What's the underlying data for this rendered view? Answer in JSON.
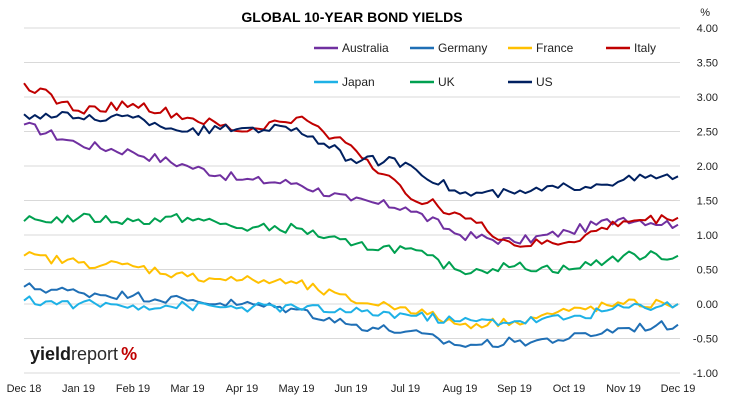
{
  "chart_data": {
    "type": "line",
    "title": "GLOBAL 10-YEAR BOND YIELDS",
    "ylabel": "%",
    "ylim": [
      -1.0,
      4.0
    ],
    "yticks": [
      "4.00",
      "3.50",
      "3.00",
      "2.50",
      "2.00",
      "1.50",
      "1.00",
      "0.50",
      "0.00",
      "-0.50",
      "-1.00"
    ],
    "yticks_values": [
      4.0,
      3.5,
      3.0,
      2.5,
      2.0,
      1.5,
      1.0,
      0.5,
      0.0,
      -0.5,
      -1.0
    ],
    "xticks": [
      "Dec 18",
      "Jan 19",
      "Feb 19",
      "Mar 19",
      "Apr 19",
      "May 19",
      "Jun 19",
      "Jul 19",
      "Aug 19",
      "Sep 19",
      "Oct 19",
      "Nov 19",
      "Dec 19"
    ],
    "grid": true,
    "legend_position": "top-right",
    "series": [
      {
        "name": "Australia",
        "color": "#7030A0",
        "values": [
          2.6,
          2.32,
          2.2,
          2.0,
          1.8,
          1.75,
          1.5,
          1.4,
          1.0,
          0.9,
          1.05,
          1.25,
          1.15
        ]
      },
      {
        "name": "Germany",
        "color": "#1F6FB5",
        "values": [
          0.25,
          0.17,
          0.12,
          0.05,
          0.0,
          -0.08,
          -0.3,
          -0.4,
          -0.6,
          -0.55,
          -0.5,
          -0.35,
          -0.3
        ]
      },
      {
        "name": "France",
        "color": "#FFC000",
        "values": [
          0.7,
          0.6,
          0.55,
          0.4,
          0.35,
          0.3,
          0.05,
          -0.05,
          -0.3,
          -0.25,
          -0.1,
          0.0,
          0.0
        ]
      },
      {
        "name": "Italy",
        "color": "#C00000",
        "values": [
          3.2,
          2.8,
          2.9,
          2.7,
          2.5,
          2.7,
          2.3,
          1.6,
          1.3,
          0.85,
          0.9,
          1.2,
          1.25
        ]
      },
      {
        "name": "Japan",
        "color": "#1EB1E6",
        "values": [
          0.05,
          0.0,
          -0.02,
          -0.03,
          -0.05,
          -0.05,
          -0.12,
          -0.15,
          -0.25,
          -0.25,
          -0.2,
          -0.05,
          0.0
        ]
      },
      {
        "name": "UK",
        "color": "#00A050",
        "values": [
          1.2,
          1.25,
          1.2,
          1.25,
          1.1,
          1.1,
          0.85,
          0.8,
          0.48,
          0.55,
          0.5,
          0.7,
          0.7
        ]
      },
      {
        "name": "US",
        "color": "#002060",
        "values": [
          2.75,
          2.7,
          2.7,
          2.5,
          2.55,
          2.55,
          2.1,
          2.05,
          1.6,
          1.6,
          1.7,
          1.8,
          1.85
        ]
      }
    ]
  },
  "logo": {
    "part1": "yield",
    "part2": "report",
    "part3": "%"
  }
}
